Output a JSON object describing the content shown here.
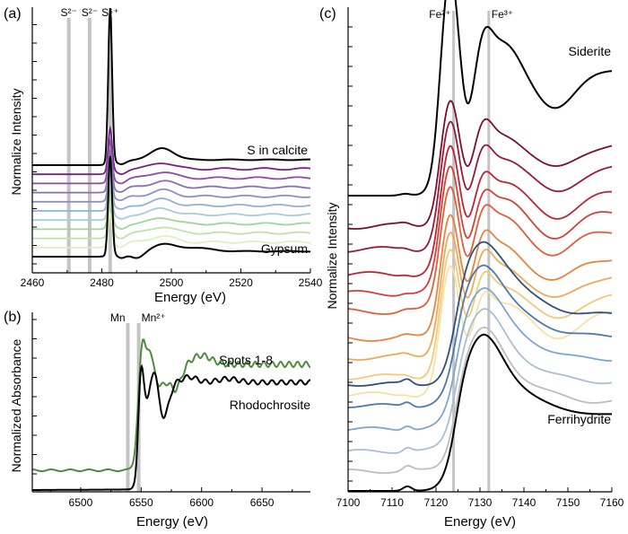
{
  "panels": {
    "a": {
      "label": "(a)"
    },
    "b": {
      "label": "(b)"
    },
    "c": {
      "label": "(c)"
    }
  },
  "chart_data": [
    {
      "type": "line",
      "panel": "(a)",
      "xlabel": "Energy (eV)",
      "ylabel": "Normalize Intensity",
      "xlim": [
        2460,
        2540
      ],
      "xticks": [
        2460,
        2480,
        2500,
        2520,
        2540
      ],
      "reference_lines": [
        {
          "label": "S²⁻",
          "x": 2470.5
        },
        {
          "label": "S²⁻",
          "x": 2476.5
        },
        {
          "label": "S⁶⁺",
          "x": 2482.4
        }
      ],
      "curve_labels": [
        {
          "text": "S in calcite",
          "series": 0
        },
        {
          "text": "Gypsum",
          "series": 10
        }
      ],
      "series": [
        {
          "color": "#000000",
          "offset": 10,
          "peak": 1.0
        },
        {
          "color": "#7b1f8a",
          "offset": 9,
          "peak": 0.7
        },
        {
          "color": "#8e4aa8",
          "offset": 8,
          "peak": 0.62
        },
        {
          "color": "#8a6fb0",
          "offset": 7,
          "peak": 0.6
        },
        {
          "color": "#8f8fc0",
          "offset": 6,
          "peak": 0.55
        },
        {
          "color": "#94b0d2",
          "offset": 5,
          "peak": 0.5
        },
        {
          "color": "#a8cbe0",
          "offset": 4,
          "peak": 0.45
        },
        {
          "color": "#9fd49a",
          "offset": 3,
          "peak": 0.45
        },
        {
          "color": "#bfe2a8",
          "offset": 2,
          "peak": 0.42
        },
        {
          "color": "#e3efc2",
          "offset": 1,
          "peak": 0.4
        },
        {
          "color": "#000000",
          "offset": 0,
          "peak": 0.6
        }
      ]
    },
    {
      "type": "line",
      "panel": "(b)",
      "xlabel": "Energy (eV)",
      "ylabel": "Normalized Absorbance",
      "xlim": [
        6460,
        6690
      ],
      "xticks": [
        6500,
        6550,
        6600,
        6650
      ],
      "reference_lines": [
        {
          "label": "Mn",
          "x": 6539
        },
        {
          "label": "Mn²⁺",
          "x": 6548
        }
      ],
      "series": [
        {
          "name": "Spots 1-8",
          "color": "#4e8c3c"
        },
        {
          "name": "Rhodochrosite",
          "color": "#000000"
        }
      ]
    },
    {
      "type": "line",
      "panel": "(c)",
      "xlabel": "Energy (eV)",
      "ylabel": "Normalize Intensity",
      "xlim": [
        7100,
        7160
      ],
      "xticks": [
        7100,
        7110,
        7120,
        7130,
        7140,
        7150,
        7160
      ],
      "reference_lines": [
        {
          "label": "Fe²⁺",
          "x": 7124
        },
        {
          "label": "Fe³⁺",
          "x": 7132
        }
      ],
      "curve_labels": [
        {
          "text": "Siderite",
          "series": 0
        },
        {
          "text": "Ferrihydrite",
          "series": 15
        }
      ],
      "series": [
        {
          "color": "#000000",
          "kind": "siderite",
          "offset": 14
        },
        {
          "color": "#7a0f2e",
          "kind": "siderite",
          "offset": 13
        },
        {
          "color": "#9a1a36",
          "kind": "siderite",
          "offset": 12
        },
        {
          "color": "#b8263a",
          "kind": "siderite",
          "offset": 11
        },
        {
          "color": "#d0423a",
          "kind": "siderite",
          "offset": 10
        },
        {
          "color": "#e05e3a",
          "kind": "siderite",
          "offset": 9
        },
        {
          "color": "#e8843f",
          "kind": "siderite",
          "offset": 8
        },
        {
          "color": "#f0a85a",
          "kind": "siderite",
          "offset": 7
        },
        {
          "color": "#f4c97a",
          "kind": "siderite",
          "offset": 6
        },
        {
          "color": "#f7e3a0",
          "kind": "siderite",
          "offset": 5
        },
        {
          "color": "#2f4f7c",
          "kind": "ferri",
          "offset": 4
        },
        {
          "color": "#4d79ad",
          "kind": "ferri",
          "offset": 3
        },
        {
          "color": "#7ea6cf",
          "kind": "ferri",
          "offset": 2
        },
        {
          "color": "#a9bfd6",
          "kind": "ferri",
          "offset": 1.5
        },
        {
          "color": "#bdbdbd",
          "kind": "ferri",
          "offset": 1
        },
        {
          "color": "#000000",
          "kind": "ferri",
          "offset": 0
        }
      ]
    }
  ]
}
